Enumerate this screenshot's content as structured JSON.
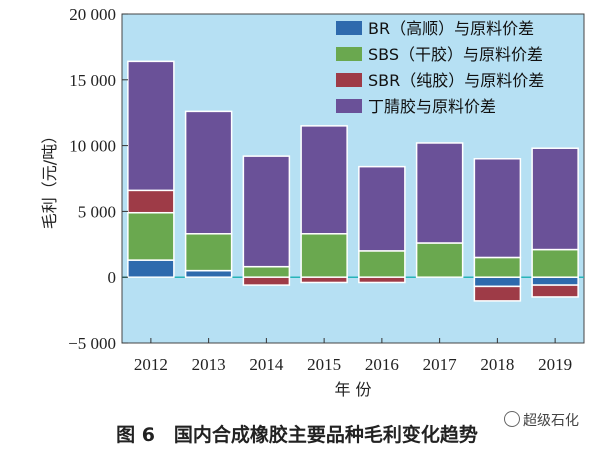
{
  "chart_data": {
    "type": "bar",
    "stacked": true,
    "categories": [
      "2012",
      "2013",
      "2014",
      "2015",
      "2016",
      "2017",
      "2018",
      "2019"
    ],
    "series": [
      {
        "name": "BR（高顺）与原料价差",
        "color": "#2e6aad",
        "values": [
          1300,
          500,
          0,
          0,
          0,
          0,
          -700,
          -600
        ]
      },
      {
        "name": "SBS（干胶）与原料价差",
        "color": "#6aa84f",
        "values": [
          3600,
          2800,
          800,
          3300,
          2000,
          2600,
          1500,
          2100
        ]
      },
      {
        "name": "SBR（纯胶）与原料价差",
        "color": "#9e3b47",
        "values": [
          1700,
          0,
          -600,
          -400,
          -400,
          0,
          -1100,
          -900
        ]
      },
      {
        "name": "丁腈胶与原料价差",
        "color": "#6a5198",
        "values": [
          9800,
          9300,
          8400,
          8200,
          6400,
          7600,
          7500,
          7700
        ]
      }
    ],
    "y_ticks": [
      "20 000",
      "15 000",
      "10 000",
      "5 000",
      "0",
      "−5 000"
    ],
    "y_tick_values": [
      20000,
      15000,
      10000,
      5000,
      0,
      -5000
    ],
    "ylim": [
      -5000,
      20000
    ],
    "xlabel": "年 份",
    "ylabel": "毛利（元/吨）",
    "legend_position": "top-right",
    "grid": false,
    "background_color": "#b6e0f3",
    "zero_line_color": "#28b4b8"
  },
  "caption": "图 6　国内合成橡胶主要品种毛利变化趋势",
  "watermark": "超级石化"
}
